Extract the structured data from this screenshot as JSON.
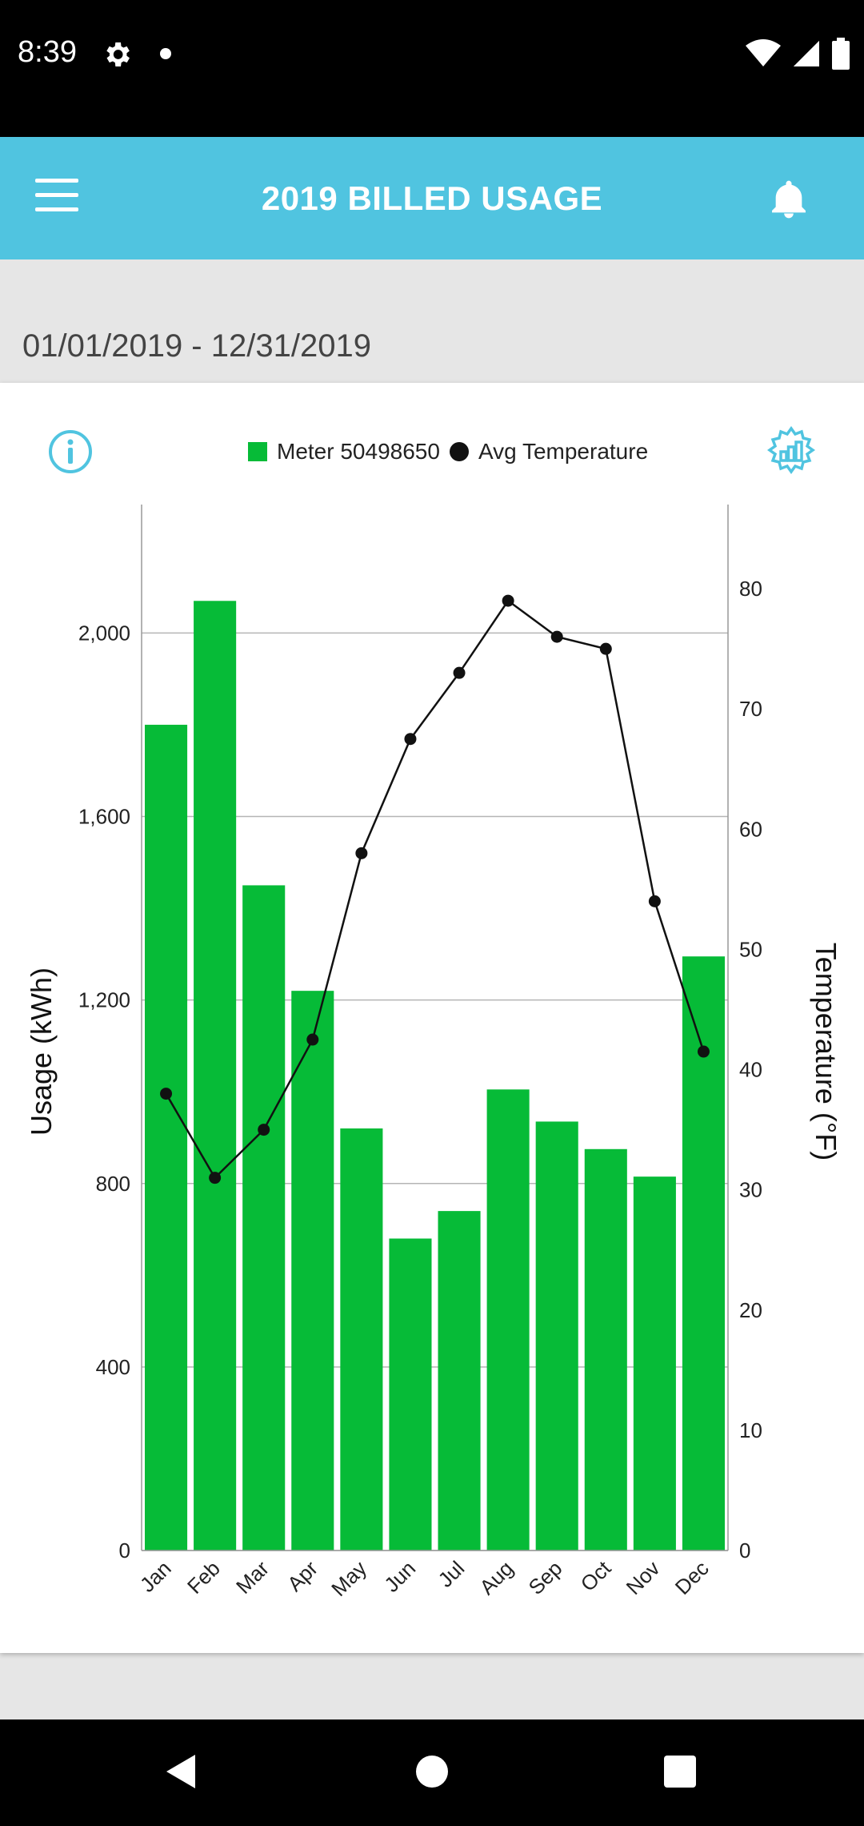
{
  "status_bar": {
    "time": "8:39"
  },
  "app_bar": {
    "title": "2019 BILLED USAGE"
  },
  "date_range": "01/01/2019 - 12/31/2019",
  "colors": {
    "accent": "#50c4e0",
    "bar": "#06bb37",
    "line": "#111111"
  },
  "chart_data": {
    "type": "bar",
    "categories": [
      "Jan",
      "Feb",
      "Mar",
      "Apr",
      "May",
      "Jun",
      "Jul",
      "Aug",
      "Sep",
      "Oct",
      "Nov",
      "Dec"
    ],
    "series": [
      {
        "name": "Meter 50498650",
        "type": "bar",
        "axis": "left",
        "values": [
          1800,
          2070,
          1450,
          1220,
          920,
          680,
          740,
          1005,
          935,
          875,
          815,
          1295
        ]
      },
      {
        "name": "Avg Temperature",
        "type": "line",
        "axis": "right",
        "values": [
          38,
          31,
          35,
          42.5,
          58,
          67.5,
          73,
          79,
          76,
          75,
          54,
          41.5
        ]
      }
    ],
    "ylabel": "Usage (kWh)",
    "y2label": "Temperature (°F)",
    "ylim": [
      0,
      2280
    ],
    "y2lim": [
      0,
      87
    ],
    "yticks": [
      0,
      400,
      800,
      1200,
      1600,
      2000
    ],
    "ytick_labels": [
      "0",
      "400",
      "800",
      "1,200",
      "1,600",
      "2,000"
    ],
    "y2ticks": [
      0,
      10,
      20,
      30,
      40,
      50,
      60,
      70,
      80
    ],
    "y2tick_labels": [
      "0",
      "10",
      "20",
      "30",
      "40",
      "50",
      "60",
      "70",
      "80"
    ],
    "grid": true,
    "legend": "top-center"
  }
}
